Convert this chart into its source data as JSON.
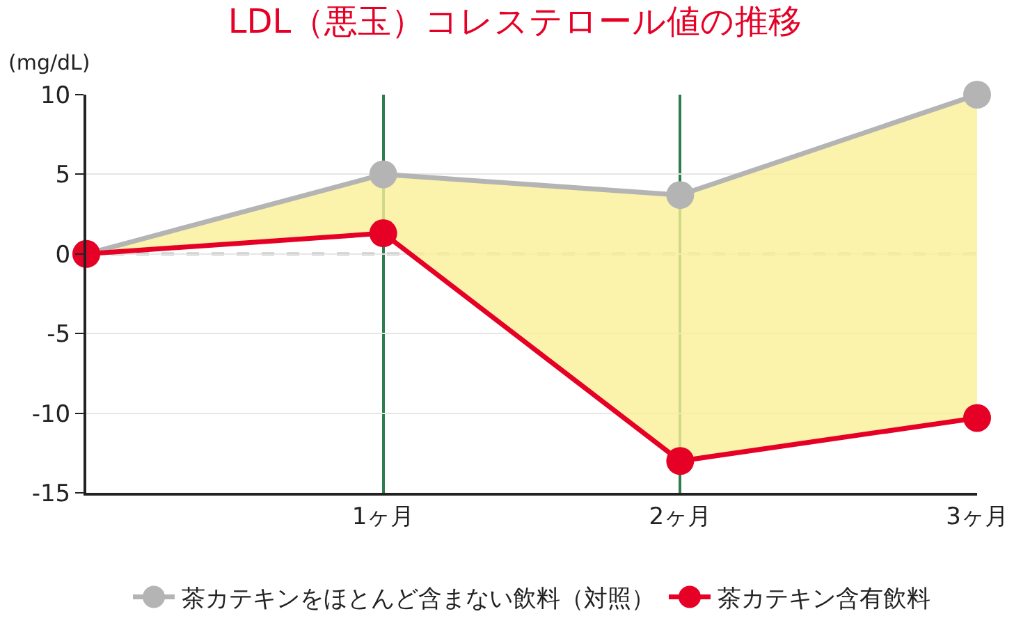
{
  "chart_data": {
    "type": "line",
    "title": "LDL（悪玉）コレステロール値の推移",
    "ylabel": "(mg/dL)",
    "x": [
      0,
      1,
      2,
      3
    ],
    "xlim": [
      0,
      3
    ],
    "xticks": [
      {
        "value": 0,
        "label": null
      },
      {
        "value": 1,
        "label": "1ヶ月"
      },
      {
        "value": 2,
        "label": "2ヶ月"
      },
      {
        "value": 3,
        "label": "3ヶ月"
      }
    ],
    "ylim": [
      -15,
      10
    ],
    "yticks": [
      -15,
      -10,
      -5,
      0,
      5,
      10
    ],
    "series": [
      {
        "name": "茶カテキンをほとんど含まない飲料（対照）",
        "color": "#b4b4b4",
        "values": [
          0,
          5,
          3.7,
          10
        ]
      },
      {
        "name": "茶カテキン含有飲料",
        "color": "#e60026",
        "values": [
          0,
          1.3,
          -13,
          -10.3
        ],
        "lower": [
          0,
          1.3,
          -13,
          -10.3
        ],
        "upper": [
          0,
          5,
          3.7,
          10
        ]
      }
    ],
    "ref_lines": [
      {
        "axis": "y",
        "value": 0,
        "color": "#aaaaaa",
        "line_style": "dashed"
      }
    ],
    "grid": true,
    "legend": "bottom",
    "marker": "circle",
    "line_style": "solid"
  }
}
